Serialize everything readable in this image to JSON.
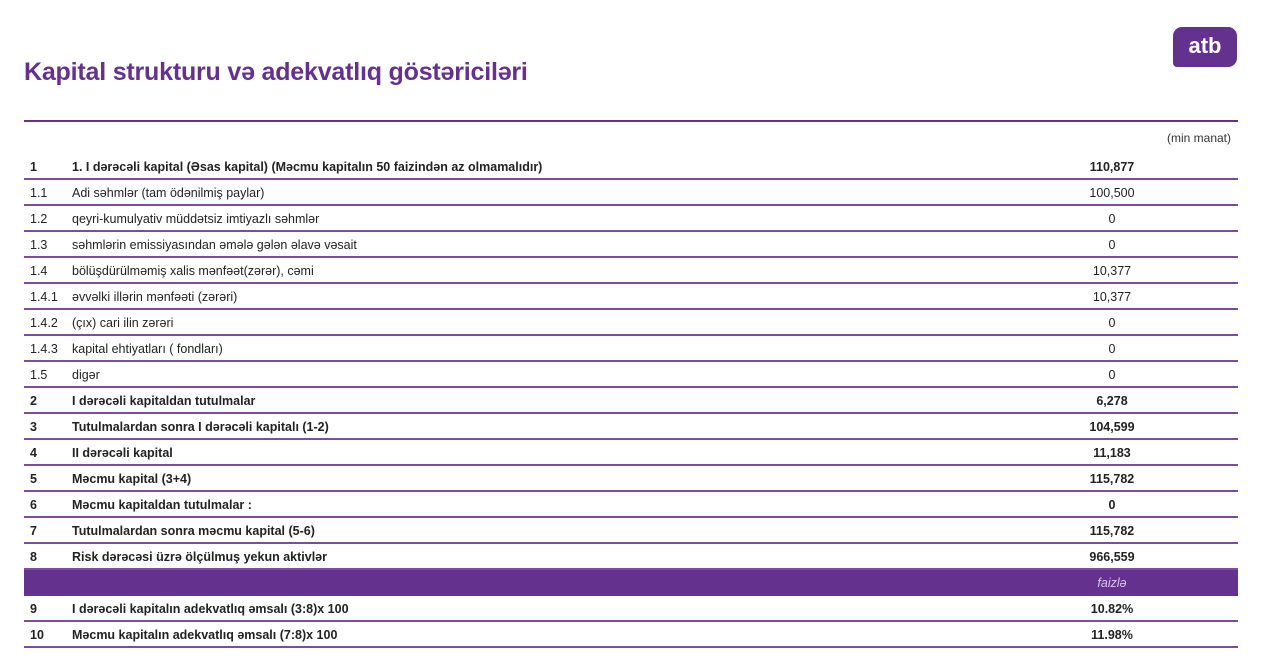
{
  "title": "Kapital strukturu və adekvatlıq göstəriciləri",
  "logo": "atb",
  "unit": "(min manat)",
  "colors": {
    "brand": "#65318f"
  },
  "rows": [
    {
      "num": "1",
      "label": "1. I dərəcəli kapital (Əsas kapital) (Məcmu kapitalın 50 faizindən az olmamalıdır)",
      "value": "110,877",
      "bold": true
    },
    {
      "num": "1.1",
      "label": "Adi səhmlər (tam ödənilmiş paylar)",
      "value": "100,500",
      "bold": false
    },
    {
      "num": "1.2",
      "label": "qeyri-kumulyativ müddətsiz imtiyazlı səhmlər",
      "value": "0",
      "bold": false
    },
    {
      "num": "1.3",
      "label": "səhmlərin emissiyasından əmələ gələn əlavə vəsait",
      "value": "0",
      "bold": false
    },
    {
      "num": "1.4",
      "label": "bölüşdürülməmiş xalis mənfəət(zərər), cəmi",
      "value": "10,377",
      "bold": false
    },
    {
      "num": "1.4.1",
      "label": "əvvəlki illərin mənfəəti (zərəri)",
      "value": "10,377",
      "bold": false
    },
    {
      "num": "1.4.2",
      "label": " (çıx) cari ilin zərəri",
      "value": "0",
      "bold": false
    },
    {
      "num": "1.4.3",
      "label": "kapital ehtiyatları ( fondları)",
      "value": "0",
      "bold": false
    },
    {
      "num": "1.5",
      "label": "digər",
      "value": "0",
      "bold": false
    },
    {
      "num": "2",
      "label": "I dərəcəli kapitaldan tutulmalar",
      "value": "6,278",
      "bold": true
    },
    {
      "num": "3",
      "label": "Tutulmalardan sonra I dərəcəli kapitalı (1-2)",
      "value": "104,599",
      "bold": true
    },
    {
      "num": "4",
      "label": "II dərəcəli kapital",
      "value": "11,183",
      "bold": true
    },
    {
      "num": "5",
      "label": "Məcmu kapital  (3+4)",
      "value": "115,782",
      "bold": true
    },
    {
      "num": "6",
      "label": "Məcmu kapitaldan tutulmalar :",
      "value": "0",
      "bold": true
    },
    {
      "num": "7",
      "label": "Tutulmalardan sonra məcmu kapital (5-6)",
      "value": "115,782",
      "bold": true
    },
    {
      "num": "8",
      "label": "Risk dərəcəsi üzrə ölçülmuş yekun aktivlər",
      "value": "966,559",
      "bold": true
    },
    {
      "band": true,
      "num": "",
      "label": "",
      "value": "faizlə"
    },
    {
      "num": "9",
      "label": "I dərəcəli kapitalın adekvatlıq əmsalı  (3:8)x 100",
      "value": "10.82%",
      "bold": true
    },
    {
      "num": "10",
      "label": "Məcmu kapitalın adekvatlıq əmsalı (7:8)x 100",
      "value": "11.98%",
      "bold": true
    }
  ]
}
